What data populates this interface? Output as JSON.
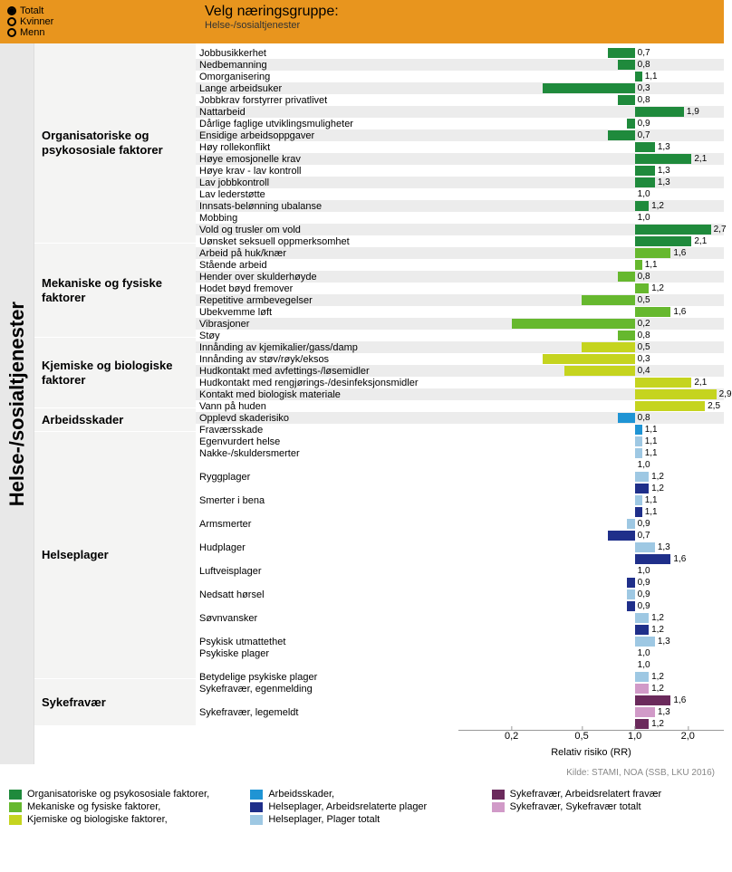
{
  "radio": {
    "items": [
      "Totalt",
      "Kvinner",
      "Menn"
    ],
    "selected": 0
  },
  "header": {
    "title": "Velg næringsgruppe:",
    "subtitle": "Helse-/sosialtjenester"
  },
  "sideLabel": "Helse-/sosialtjenester",
  "chart": {
    "xmin": 0.1,
    "xmax": 3.2,
    "ticks": [
      0.2,
      0.5,
      1.0,
      2.0
    ],
    "axisLabel": "Relativ risiko (RR)",
    "barHeight": 13
  },
  "colors": {
    "organisatoriske": "#1f8a3c",
    "mekaniske": "#66b82e",
    "kjemiske": "#c5d41f",
    "arbeidsskader": "#1f94d4",
    "helseplager_arbeid": "#1f2f8a",
    "helseplager_totalt": "#9ec8e3",
    "sykefravaer_arbeid": "#6b2a5c",
    "sykefravaer_totalt": "#d19ac8",
    "rowAlt": "#ececec",
    "catBg": "#f4f4f3"
  },
  "categories": [
    {
      "name": "Organisatoriske og psykososiale faktorer",
      "color": "organisatoriske",
      "rows": [
        {
          "label": "Jobbusikkerhet",
          "v": 0.7
        },
        {
          "label": "Nedbemanning",
          "v": 0.8
        },
        {
          "label": "Omorganisering",
          "v": 1.1
        },
        {
          "label": "Lange arbeidsuker",
          "v": 0.3
        },
        {
          "label": "Jobbkrav forstyrrer privatlivet",
          "v": 0.8
        },
        {
          "label": "Nattarbeid",
          "v": 1.9
        },
        {
          "label": "Dårlige faglige utviklingsmuligheter",
          "v": 0.9
        },
        {
          "label": "Ensidige arbeidsoppgaver",
          "v": 0.7
        },
        {
          "label": "Høy rollekonflikt",
          "v": 1.3
        },
        {
          "label": "Høye emosjonelle krav",
          "v": 2.1
        },
        {
          "label": "Høye krav - lav kontroll",
          "v": 1.3
        },
        {
          "label": "Lav jobbkontroll",
          "v": 1.3
        },
        {
          "label": "Lav lederstøtte",
          "v": 1.0
        },
        {
          "label": "Innsats-belønning ubalanse",
          "v": 1.2
        },
        {
          "label": "Mobbing",
          "v": 1.0
        },
        {
          "label": "Vold og trusler om vold",
          "v": 2.7
        },
        {
          "label": "Uønsket seksuell oppmerksomhet",
          "v": 2.1
        }
      ]
    },
    {
      "name": "Mekaniske og fysiske faktorer",
      "color": "mekaniske",
      "rows": [
        {
          "label": "Arbeid på huk/knær",
          "v": 1.6
        },
        {
          "label": "Stående arbeid",
          "v": 1.1
        },
        {
          "label": "Hender over skulderhøyde",
          "v": 0.8
        },
        {
          "label": "Hodet bøyd fremover",
          "v": 1.2
        },
        {
          "label": "Repetitive armbevegelser",
          "v": 0.5
        },
        {
          "label": "Ubekvemme løft",
          "v": 1.6
        },
        {
          "label": "Vibrasjoner",
          "v": 0.2
        },
        {
          "label": "Støy",
          "v": 0.8
        }
      ]
    },
    {
      "name": "Kjemiske og biologiske faktorer",
      "color": "kjemiske",
      "rows": [
        {
          "label": "Innånding av kjemikalier/gass/damp",
          "v": 0.5
        },
        {
          "label": "Innånding av støv/røyk/eksos",
          "v": 0.3
        },
        {
          "label": "Hudkontakt med avfettings-/løsemidler",
          "v": 0.4
        },
        {
          "label": "Hudkontakt med rengjørings-/desinfeksjonsmidler",
          "v": 2.1
        },
        {
          "label": "Kontakt med biologisk materiale",
          "v": 2.9
        },
        {
          "label": "Vann på huden",
          "v": 2.5
        }
      ]
    },
    {
      "name": "Arbeidsskader",
      "color": "arbeidsskader",
      "rows": [
        {
          "label": "Opplevd skaderisiko",
          "v": 0.8
        },
        {
          "label": "Fraværsskade",
          "v": 1.1
        }
      ]
    },
    {
      "name": "Helseplager",
      "dual": true,
      "rows": [
        {
          "label": "Egenvurdert helse",
          "t": 1.1
        },
        {
          "label": "Nakke-/skuldersmerter",
          "t": 1.1,
          "a": 1.0
        },
        {
          "label": "Ryggplager",
          "t": 1.2,
          "a": 1.2
        },
        {
          "label": "Smerter i bena",
          "t": 1.1,
          "a": 1.1
        },
        {
          "label": "Armsmerter",
          "t": 0.9,
          "a": 0.7
        },
        {
          "label": "Hudplager",
          "t": 1.3,
          "a": 1.6
        },
        {
          "label": "Luftveisplager",
          "t": 1.0,
          "a": 0.9
        },
        {
          "label": "Nedsatt hørsel",
          "t": 0.9,
          "a": 0.9
        },
        {
          "label": "Søvnvansker",
          "t": 1.2,
          "a": 1.2
        },
        {
          "label": "Psykisk utmattethet",
          "t": 1.3
        },
        {
          "label": "Psykiske plager",
          "t": 1.0,
          "a": 1.0
        },
        {
          "label": "Betydelige psykiske plager",
          "t": 1.2
        }
      ]
    },
    {
      "name": "Sykefravær",
      "dual": true,
      "syke": true,
      "rows": [
        {
          "label": "Sykefravær, egenmelding",
          "t": 1.2,
          "a": 1.6
        },
        {
          "label": "Sykefravær, legemeldt",
          "t": 1.3,
          "a": 1.2
        }
      ]
    }
  ],
  "legend": [
    {
      "label": "Organisatoriske og psykososiale faktorer,",
      "c": "organisatoriske"
    },
    {
      "label": "Arbeidsskader,",
      "c": "arbeidsskader"
    },
    {
      "label": "Sykefravær, Arbeidsrelatert fravær",
      "c": "sykefravaer_arbeid"
    },
    {
      "label": "Mekaniske og fysiske faktorer,",
      "c": "mekaniske"
    },
    {
      "label": "Helseplager, Arbeidsrelaterte plager",
      "c": "helseplager_arbeid"
    },
    {
      "label": "Sykefravær, Sykefravær totalt",
      "c": "sykefravaer_totalt"
    },
    {
      "label": "Kjemiske og biologiske faktorer,",
      "c": "kjemiske"
    },
    {
      "label": "Helseplager, Plager totalt",
      "c": "helseplager_totalt"
    }
  ],
  "source": "Kilde: STAMI, NOA (SSB, LKU 2016)"
}
